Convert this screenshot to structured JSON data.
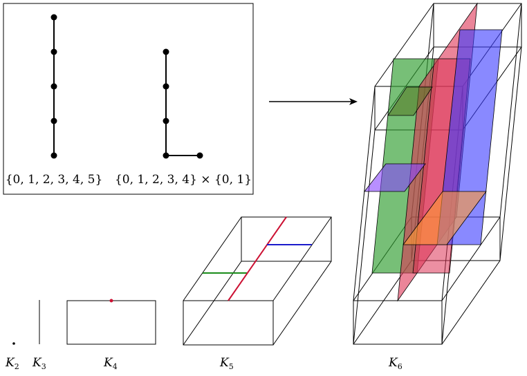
{
  "inset": {
    "chain_label": "{0, 1, 2, 3, 4, 5}",
    "product_label": "{0, 1, 2, 3, 4} × {0, 1}"
  },
  "labels": [
    {
      "main": "K",
      "sub": "2"
    },
    {
      "main": "K",
      "sub": "3"
    },
    {
      "main": "K",
      "sub": "4"
    },
    {
      "main": "K",
      "sub": "5"
    },
    {
      "main": "K",
      "sub": "6"
    }
  ],
  "colors": {
    "k5_green": "#1a8c1a",
    "k5_red": "#cc1133",
    "k5_blue": "#1a1acc",
    "k4_point": "#cc1133",
    "k6_green": "#2e9c2e",
    "k6_pink": "#dd3355",
    "k6_blue": "#3a3aff",
    "k6_orange": "#ff9933",
    "k6_purple": "#8844ff"
  }
}
